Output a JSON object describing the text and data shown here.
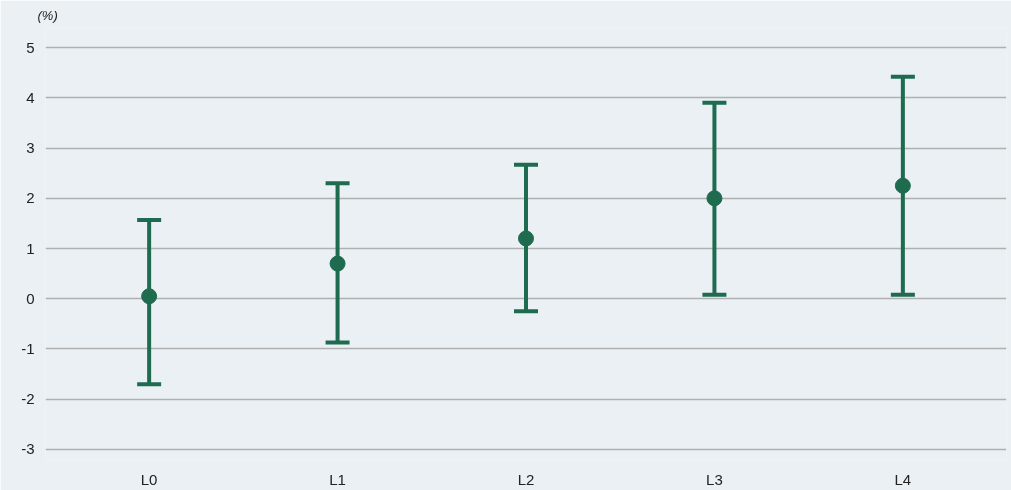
{
  "chart_data": {
    "type": "scatter",
    "ylabel": "(%)",
    "categories": [
      "L0",
      "L1",
      "L2",
      "L3",
      "L4"
    ],
    "values": [
      0.05,
      0.7,
      1.2,
      2.0,
      2.25
    ],
    "errors": [
      [
        -1.7,
        1.57
      ],
      [
        -0.87,
        2.3
      ],
      [
        -0.25,
        2.67
      ],
      [
        0.08,
        3.9
      ],
      [
        0.08,
        4.42
      ]
    ],
    "color": "#1e6b50",
    "marker": "circle",
    "ylim": [
      -3.2,
      5.4
    ],
    "yticks": [
      -3,
      -2,
      -1,
      0,
      1,
      2,
      3,
      4,
      5
    ],
    "grid": "y"
  }
}
